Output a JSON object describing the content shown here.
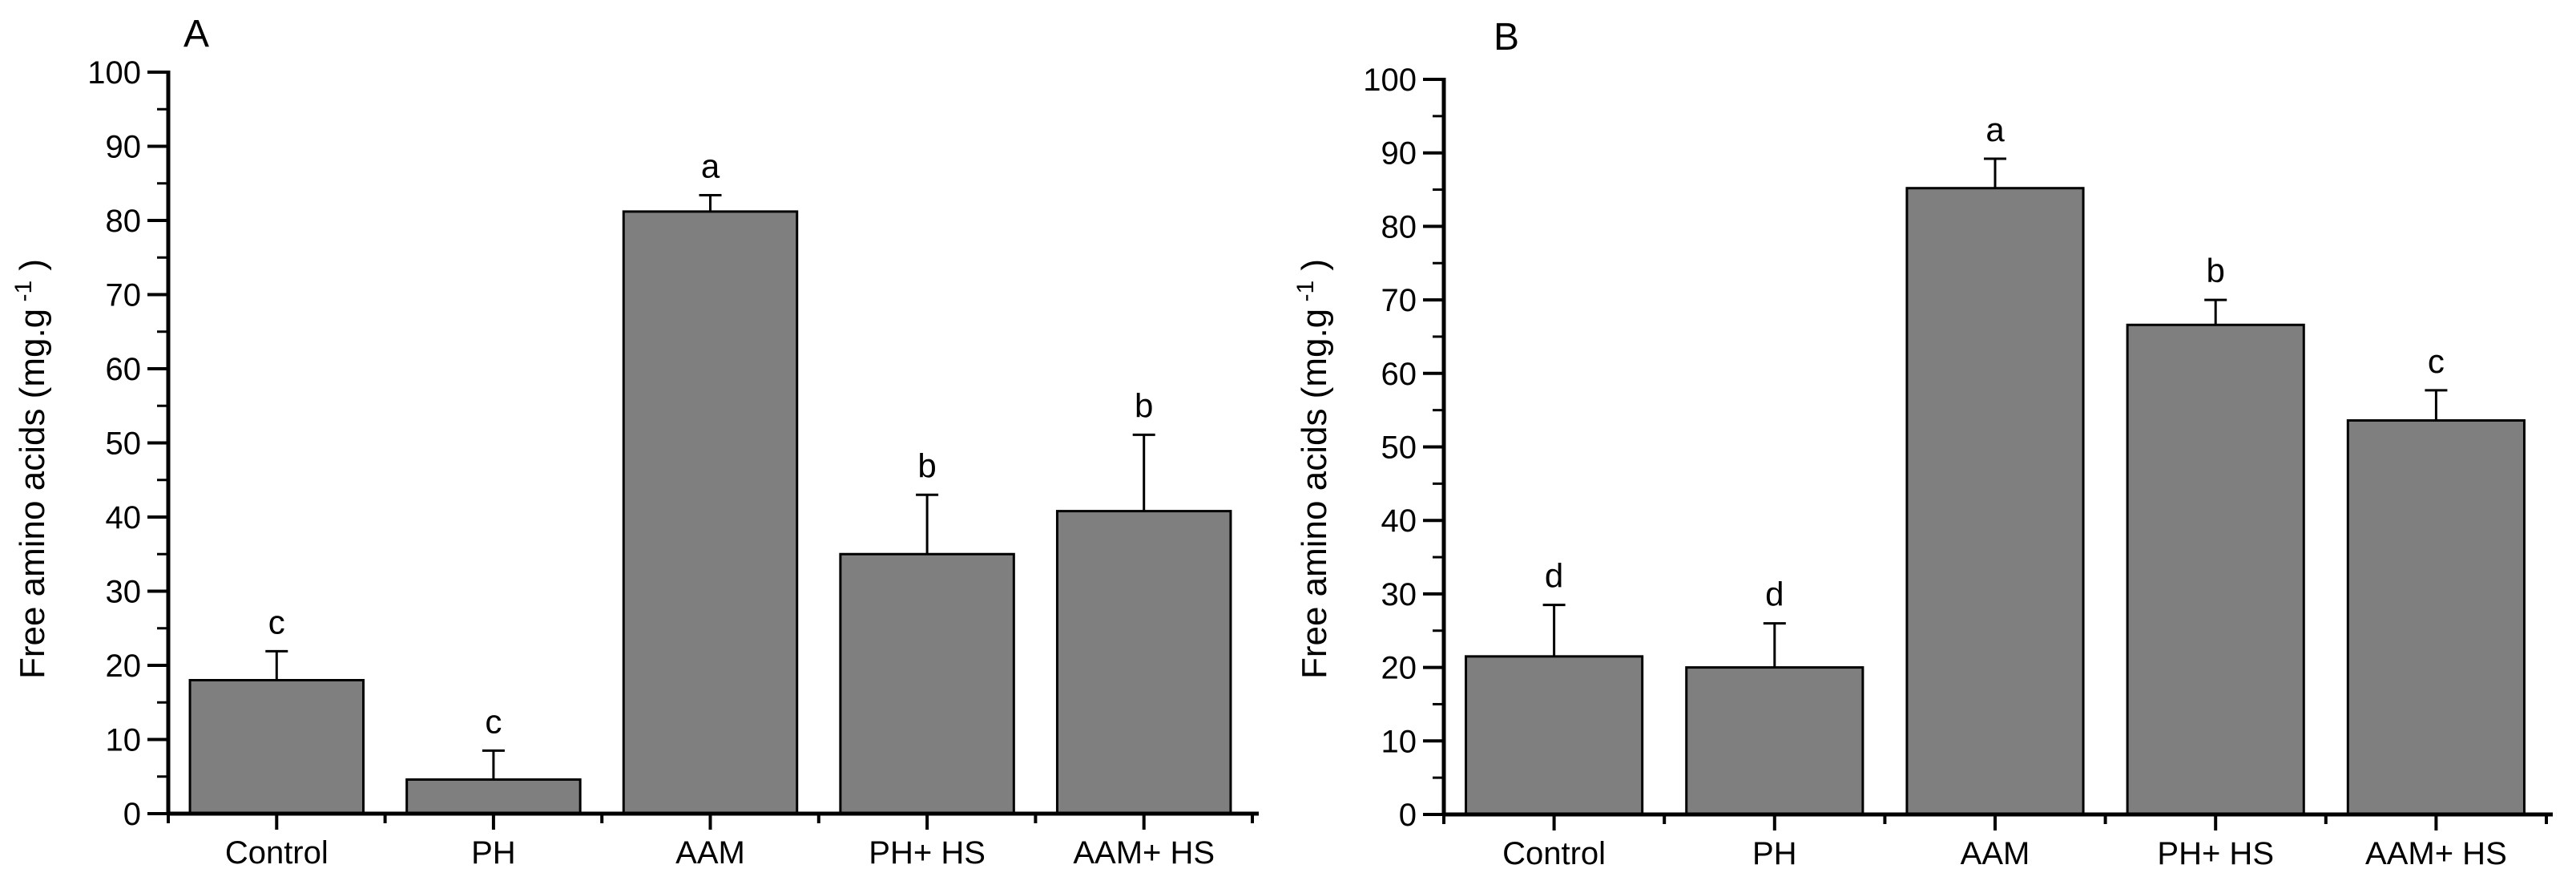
{
  "figure": {
    "background": "#ffffff",
    "bar_fill": "#7f7f7f",
    "bar_stroke": "#000000",
    "axis_color": "#000000",
    "text_color": "#000000"
  },
  "chart_data": [
    {
      "type": "bar",
      "panel_label": "A",
      "ylabel": "Free amino acids (mg.g⁻¹)",
      "ylabel_parts": {
        "main": "Free amino acids (mg.g",
        "superscript": "-1",
        "suffix": ")"
      },
      "categories": [
        "Control",
        "PH",
        "AAM",
        "PH+ HS",
        "AAM+ HS"
      ],
      "values": [
        18.0,
        4.6,
        81.2,
        35.0,
        40.8
      ],
      "errors_upper": [
        3.9,
        3.9,
        2.2,
        8.0,
        10.3
      ],
      "sig_letters": [
        "c",
        "c",
        "a",
        "b",
        "b"
      ],
      "ylim": [
        0,
        100
      ],
      "ytick_step": 10,
      "ytick_minor_step": 5,
      "ytick_labels": [
        "0",
        "10",
        "20",
        "30",
        "40",
        "50",
        "60",
        "70",
        "80",
        "90",
        "100"
      ],
      "grid": false,
      "legend": null
    },
    {
      "type": "bar",
      "panel_label": "B",
      "ylabel": "Free amino acids (mg.g⁻¹)",
      "ylabel_parts": {
        "main": "Free amino acids (mg.g",
        "superscript": "-1",
        "suffix": ")"
      },
      "categories": [
        "Control",
        "PH",
        "AAM",
        "PH+ HS",
        "AAM+ HS"
      ],
      "values": [
        21.5,
        20.0,
        85.2,
        66.6,
        53.6
      ],
      "errors_upper": [
        7.0,
        6.0,
        4.0,
        3.4,
        4.1
      ],
      "sig_letters": [
        "d",
        "d",
        "a",
        "b",
        "c"
      ],
      "ylim": [
        0,
        100
      ],
      "ytick_step": 10,
      "ytick_minor_step": 5,
      "ytick_labels": [
        "0",
        "10",
        "20",
        "30",
        "40",
        "50",
        "60",
        "70",
        "80",
        "90",
        "100"
      ],
      "grid": false,
      "legend": null
    }
  ]
}
